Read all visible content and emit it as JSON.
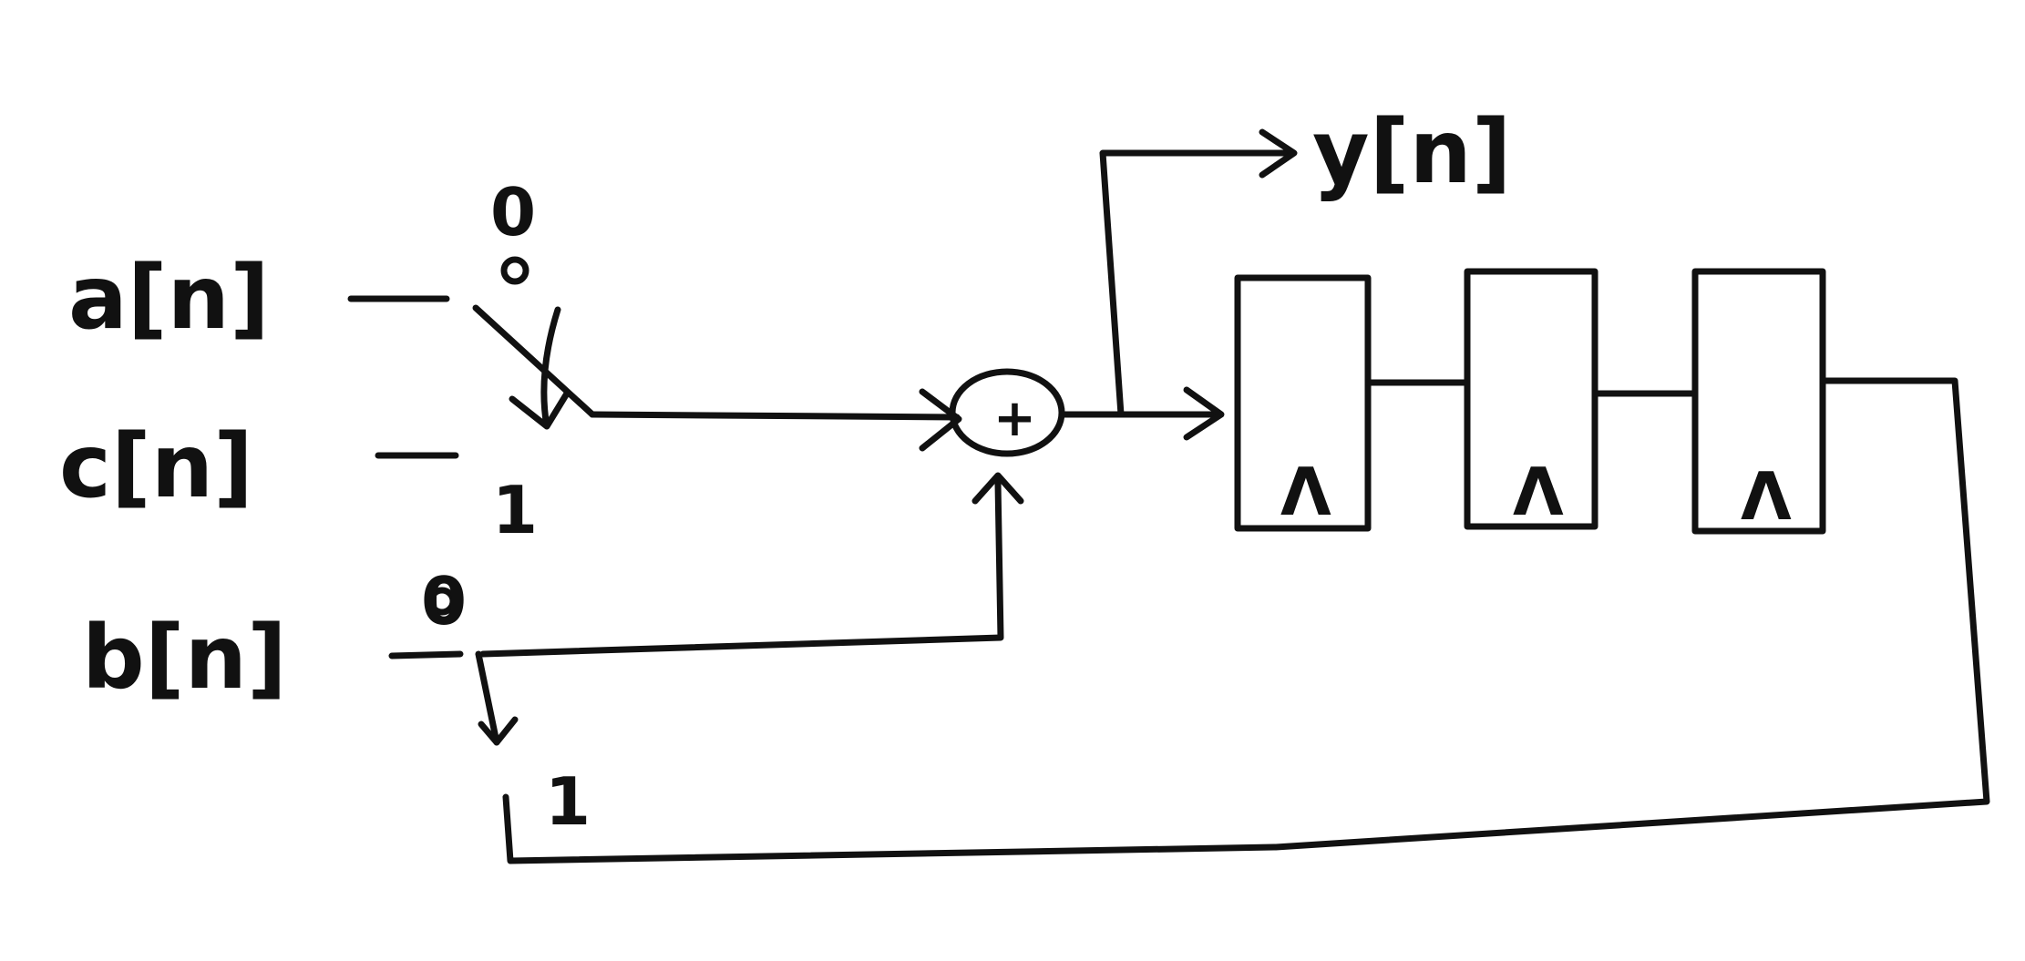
{
  "inputs": {
    "a": "a[n]",
    "c": "c[n]",
    "b": "b[n]"
  },
  "output": "y[n]",
  "mux_top": {
    "sel0": "0",
    "sel1": "1"
  },
  "mux_bottom": {
    "sel0": "0",
    "sel1": "1"
  },
  "adder_symbol": "+",
  "registers": [
    {
      "clock_symbol": "Λ"
    },
    {
      "clock_symbol": "Λ"
    },
    {
      "clock_symbol": "Λ"
    }
  ]
}
